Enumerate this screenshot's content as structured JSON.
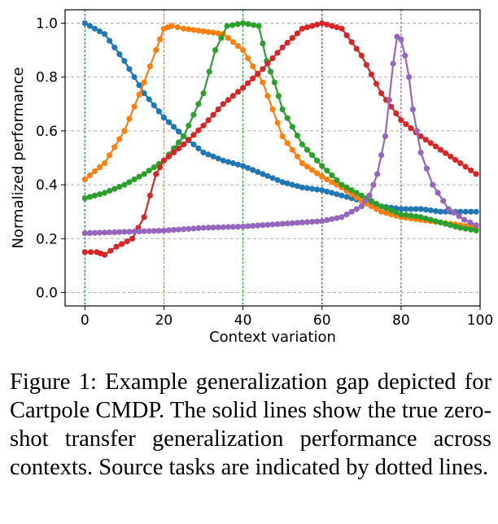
{
  "chart_data": {
    "type": "line",
    "xlabel": "Context variation",
    "ylabel": "Normalized performance",
    "xlim": [
      -5,
      100
    ],
    "ylim": [
      -0.05,
      1.05
    ],
    "xticks": [
      0,
      20,
      40,
      60,
      80,
      100
    ],
    "yticks": [
      0.0,
      0.2,
      0.4,
      0.6,
      0.8,
      1.0
    ],
    "grid": true,
    "markers": true,
    "series": [
      {
        "color": "#1f77b4",
        "source_task": 0,
        "points": [
          [
            0,
            1.0
          ],
          [
            5,
            0.96
          ],
          [
            10,
            0.86
          ],
          [
            15,
            0.74
          ],
          [
            20,
            0.65
          ],
          [
            25,
            0.58
          ],
          [
            30,
            0.52
          ],
          [
            35,
            0.49
          ],
          [
            40,
            0.47
          ],
          [
            45,
            0.44
          ],
          [
            50,
            0.41
          ],
          [
            55,
            0.39
          ],
          [
            60,
            0.38
          ],
          [
            65,
            0.36
          ],
          [
            70,
            0.34
          ],
          [
            75,
            0.32
          ],
          [
            80,
            0.31
          ],
          [
            85,
            0.31
          ],
          [
            90,
            0.3
          ],
          [
            95,
            0.3
          ],
          [
            99,
            0.3
          ]
        ]
      },
      {
        "color": "#ff7f0e",
        "source_task": 20,
        "points": [
          [
            0,
            0.42
          ],
          [
            5,
            0.48
          ],
          [
            10,
            0.6
          ],
          [
            15,
            0.78
          ],
          [
            18,
            0.9
          ],
          [
            20,
            0.98
          ],
          [
            22,
            0.99
          ],
          [
            25,
            0.98
          ],
          [
            30,
            0.97
          ],
          [
            35,
            0.96
          ],
          [
            40,
            0.9
          ],
          [
            45,
            0.78
          ],
          [
            50,
            0.58
          ],
          [
            55,
            0.48
          ],
          [
            60,
            0.43
          ],
          [
            65,
            0.39
          ],
          [
            70,
            0.34
          ],
          [
            75,
            0.3
          ],
          [
            80,
            0.28
          ],
          [
            85,
            0.27
          ],
          [
            90,
            0.26
          ],
          [
            95,
            0.25
          ],
          [
            99,
            0.24
          ]
        ]
      },
      {
        "color": "#2ca02c",
        "source_task": 40,
        "points": [
          [
            0,
            0.35
          ],
          [
            5,
            0.37
          ],
          [
            10,
            0.4
          ],
          [
            15,
            0.44
          ],
          [
            20,
            0.49
          ],
          [
            25,
            0.58
          ],
          [
            30,
            0.74
          ],
          [
            33,
            0.9
          ],
          [
            36,
            0.99
          ],
          [
            40,
            1.0
          ],
          [
            44,
            0.99
          ],
          [
            46,
            0.86
          ],
          [
            48,
            0.78
          ],
          [
            50,
            0.68
          ],
          [
            55,
            0.55
          ],
          [
            60,
            0.47
          ],
          [
            65,
            0.4
          ],
          [
            70,
            0.36
          ],
          [
            75,
            0.32
          ],
          [
            80,
            0.29
          ],
          [
            85,
            0.28
          ],
          [
            90,
            0.26
          ],
          [
            95,
            0.24
          ],
          [
            99,
            0.23
          ]
        ]
      },
      {
        "color": "#d62728",
        "source_task": 60,
        "points": [
          [
            0,
            0.15
          ],
          [
            3,
            0.15
          ],
          [
            5,
            0.14
          ],
          [
            8,
            0.17
          ],
          [
            12,
            0.2
          ],
          [
            15,
            0.28
          ],
          [
            18,
            0.44
          ],
          [
            20,
            0.49
          ],
          [
            25,
            0.55
          ],
          [
            30,
            0.62
          ],
          [
            35,
            0.7
          ],
          [
            40,
            0.76
          ],
          [
            45,
            0.83
          ],
          [
            50,
            0.91
          ],
          [
            55,
            0.98
          ],
          [
            60,
            1.0
          ],
          [
            65,
            0.98
          ],
          [
            70,
            0.88
          ],
          [
            75,
            0.74
          ],
          [
            80,
            0.64
          ],
          [
            85,
            0.58
          ],
          [
            90,
            0.53
          ],
          [
            95,
            0.48
          ],
          [
            99,
            0.44
          ]
        ]
      },
      {
        "color": "#9467bd",
        "source_task": 80,
        "points": [
          [
            0,
            0.22
          ],
          [
            10,
            0.225
          ],
          [
            20,
            0.23
          ],
          [
            30,
            0.24
          ],
          [
            40,
            0.245
          ],
          [
            50,
            0.255
          ],
          [
            60,
            0.265
          ],
          [
            65,
            0.28
          ],
          [
            70,
            0.32
          ],
          [
            72,
            0.36
          ],
          [
            74,
            0.44
          ],
          [
            76,
            0.58
          ],
          [
            78,
            0.85
          ],
          [
            79,
            0.95
          ],
          [
            80,
            0.94
          ],
          [
            81,
            0.88
          ],
          [
            82,
            0.8
          ],
          [
            83,
            0.68
          ],
          [
            85,
            0.52
          ],
          [
            88,
            0.4
          ],
          [
            92,
            0.31
          ],
          [
            96,
            0.27
          ],
          [
            99,
            0.25
          ]
        ]
      }
    ]
  },
  "caption": "Figure 1: Example generalization gap depicted for Cartpole CMDP. The solid lines show the true zero-shot transfer generalization performance across contexts. Source tasks are indicated by dotted lines."
}
